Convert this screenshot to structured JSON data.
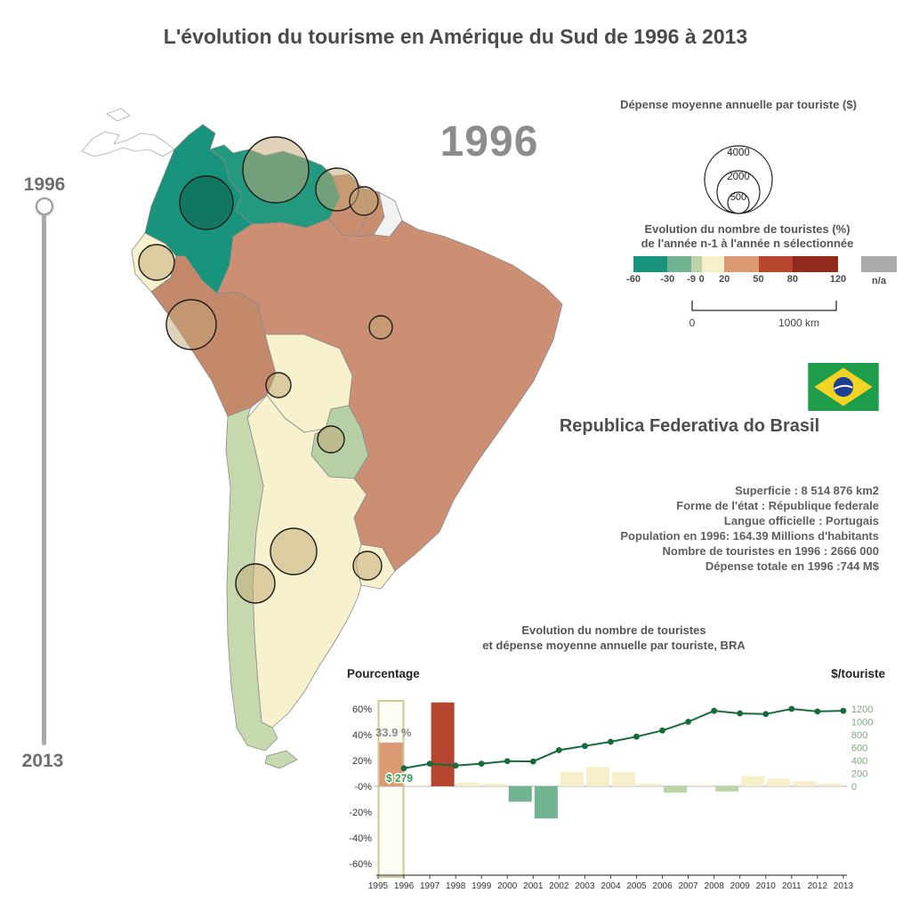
{
  "page_title": "L'évolution du tourisme en Amérique du Sud de 1996 à 2013",
  "timeline": {
    "start_label": "1996",
    "end_label": "2013"
  },
  "selected_year_display": "1996",
  "legend_spending": {
    "title": "Dépense moyenne annuelle par touriste ($)",
    "circles": [
      {
        "label": "4000"
      },
      {
        "label": "2000"
      },
      {
        "label": "500"
      }
    ]
  },
  "legend_evolution": {
    "title_line1": "Evolution du nombre de touristes (%)",
    "title_line2": "de l'année n-1 à l'année n sélectionnée",
    "stops": [
      -60,
      -30,
      -9,
      0,
      20,
      50,
      80,
      120
    ],
    "colors": [
      "#17947b",
      "#72b391",
      "#bcd3a8",
      "#f6f0ca",
      "#dc9a74",
      "#b5452e",
      "#922a1c"
    ],
    "na_label": "n/a",
    "na_color": "#ababab"
  },
  "scale_bar": {
    "left_label": "0",
    "right_label": "1000 km"
  },
  "country_panel": {
    "name": "Republica Federativa do Brasil",
    "facts": [
      "Superficie : 8 514 876 km2",
      "Forme de l'état : République federale",
      "Langue officielle : Portugais",
      "Population en 1996: 164.39 Millions d'habitants",
      "Nombre de touristes en 1996 : 2666 000",
      "Dépense totale en 1996 :744 M$"
    ]
  },
  "map": {
    "countries": {
      "central_america": {
        "fill": "#ffffff"
      },
      "colombia": {
        "fill": "#17947b"
      },
      "venezuela": {
        "fill": "#23997f"
      },
      "guyana": {
        "fill": "#c98e6f"
      },
      "suriname": {
        "fill": "#c98e6f"
      },
      "french_guiana": {
        "fill": "#f2f2f2"
      },
      "ecuador": {
        "fill": "#f7f2cd"
      },
      "peru": {
        "fill": "#c4886a"
      },
      "brazil": {
        "fill": "#cd8f74"
      },
      "bolivia": {
        "fill": "#f7f2cd"
      },
      "paraguay": {
        "fill": "#b7cfa5"
      },
      "chile": {
        "fill": "#c6d8ae"
      },
      "argentina": {
        "fill": "#f7f2cd"
      },
      "uruguay": {
        "fill": "#f7f2cd"
      },
      "tierra_del_fuego": {
        "fill": "#c6d8ae"
      }
    }
  },
  "chart_data": {
    "type": "bar-line-combo",
    "title_line1": "Evolution du nombre de touristes",
    "title_line2": "et dépense moyenne annuelle par touriste, BRA",
    "left_axis": {
      "label": "Pourcentage",
      "ticks": [
        "60%",
        "40%",
        "20%",
        "-0%",
        "-20%",
        "-40%",
        "-60%"
      ],
      "min": -60,
      "max": 60
    },
    "right_axis": {
      "label": "$/touriste",
      "ticks": [
        "1200",
        "1000",
        "800",
        "600",
        "400",
        "200",
        "0"
      ],
      "min": 0,
      "max": 1200
    },
    "x_labels": [
      "1995",
      "1996",
      "1997",
      "1998",
      "1999",
      "2000",
      "2001",
      "2002",
      "2003",
      "2004",
      "2005",
      "2006",
      "2007",
      "2008",
      "2009",
      "2010",
      "2011",
      "2012",
      "2013"
    ],
    "bars": {
      "name": "Evolution du nombre de touristes (%)",
      "years": [
        1996,
        1997,
        1998,
        1999,
        2000,
        2001,
        2002,
        2003,
        2004,
        2005,
        2006,
        2007,
        2008,
        2009,
        2010,
        2011,
        2012,
        2013
      ],
      "values": [
        33.9,
        1,
        65,
        3,
        2,
        -12,
        -25,
        11,
        15,
        11,
        2,
        -5,
        1,
        -4,
        8,
        6,
        4,
        2
      ]
    },
    "line": {
      "name": "Dépense moyenne annuelle par touriste ($)",
      "color": "#156b39",
      "years": [
        1996,
        1997,
        1998,
        1999,
        2000,
        2001,
        2002,
        2003,
        2004,
        2005,
        2006,
        2007,
        2008,
        2009,
        2010,
        2011,
        2012,
        2013
      ],
      "values": [
        279,
        350,
        320,
        350,
        390,
        385,
        560,
        625,
        690,
        770,
        865,
        1000,
        1170,
        1130,
        1120,
        1200,
        1160,
        1170
      ]
    },
    "annotations": [
      {
        "text": "33.9 %"
      },
      {
        "text": "$ 279"
      }
    ],
    "highlight_year": "1996",
    "highlight_color": "#cfc98f"
  }
}
